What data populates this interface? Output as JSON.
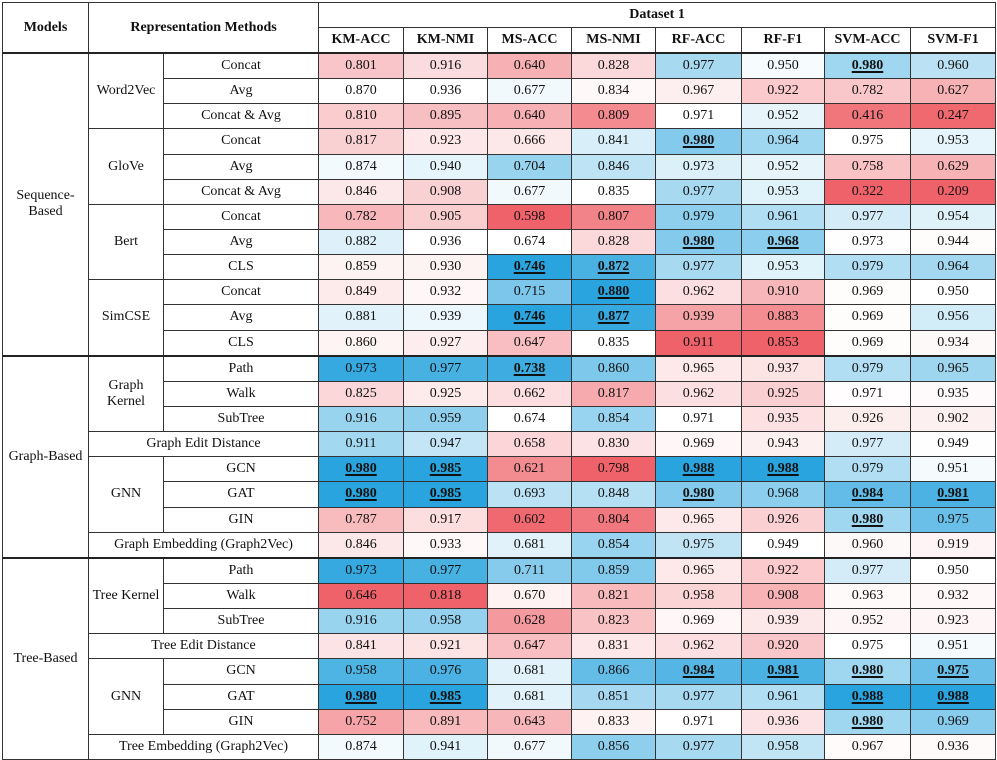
{
  "chart_data": {
    "type": "heatmap",
    "header": {
      "models": "Models",
      "methods": "Representation Methods",
      "dataset": "Dataset 1"
    },
    "columns": [
      "KM-ACC",
      "KM-NMI",
      "MS-ACC",
      "MS-NMI",
      "RF-ACC",
      "RF-F1",
      "SVM-ACC",
      "SVM-F1"
    ],
    "colors": {
      "low": "#ee5a61",
      "mid": "#ffffff",
      "high": "#1e9fdc"
    },
    "groups": [
      {
        "model": "Sequence-Based",
        "subgroups": [
          {
            "name": "Word2Vec",
            "rows": [
              {
                "method": "Concat",
                "values": [
                  0.801,
                  0.916,
                  0.64,
                  0.828,
                  0.977,
                  0.95,
                  0.98,
                  0.96
                ],
                "best": [
                  6
                ]
              },
              {
                "method": "Avg",
                "values": [
                  0.87,
                  0.936,
                  0.677,
                  0.834,
                  0.967,
                  0.922,
                  0.782,
                  0.627
                ],
                "best": []
              },
              {
                "method": "Concat & Avg",
                "values": [
                  0.81,
                  0.895,
                  0.64,
                  0.809,
                  0.971,
                  0.952,
                  0.416,
                  0.247
                ],
                "best": []
              }
            ]
          },
          {
            "name": "GloVe",
            "rows": [
              {
                "method": "Concat",
                "values": [
                  0.817,
                  0.923,
                  0.666,
                  0.841,
                  0.98,
                  0.964,
                  0.975,
                  0.953
                ],
                "best": [
                  4
                ]
              },
              {
                "method": "Avg",
                "values": [
                  0.874,
                  0.94,
                  0.704,
                  0.846,
                  0.973,
                  0.952,
                  0.758,
                  0.629
                ],
                "best": []
              },
              {
                "method": "Concat & Avg",
                "values": [
                  0.846,
                  0.908,
                  0.677,
                  0.835,
                  0.977,
                  0.953,
                  0.322,
                  0.209
                ],
                "best": []
              }
            ]
          },
          {
            "name": "Bert",
            "rows": [
              {
                "method": "Concat",
                "values": [
                  0.782,
                  0.905,
                  0.598,
                  0.807,
                  0.979,
                  0.961,
                  0.977,
                  0.954
                ],
                "best": []
              },
              {
                "method": "Avg",
                "values": [
                  0.882,
                  0.936,
                  0.674,
                  0.828,
                  0.98,
                  0.968,
                  0.973,
                  0.944
                ],
                "best": [
                  4,
                  5
                ]
              },
              {
                "method": "CLS",
                "values": [
                  0.859,
                  0.93,
                  0.746,
                  0.872,
                  0.977,
                  0.953,
                  0.979,
                  0.964
                ],
                "best": [
                  2,
                  3
                ]
              }
            ]
          },
          {
            "name": "SimCSE",
            "rows": [
              {
                "method": "Concat",
                "values": [
                  0.849,
                  0.932,
                  0.715,
                  0.88,
                  0.962,
                  0.91,
                  0.969,
                  0.95
                ],
                "best": [
                  3
                ]
              },
              {
                "method": "Avg",
                "values": [
                  0.881,
                  0.939,
                  0.746,
                  0.877,
                  0.939,
                  0.883,
                  0.969,
                  0.956
                ],
                "best": [
                  2,
                  3
                ]
              },
              {
                "method": "CLS",
                "values": [
                  0.86,
                  0.927,
                  0.647,
                  0.835,
                  0.911,
                  0.853,
                  0.969,
                  0.934
                ],
                "best": []
              }
            ]
          }
        ]
      },
      {
        "model": "Graph-Based",
        "subgroups": [
          {
            "name": "Graph Kernel",
            "rows": [
              {
                "method": "Path",
                "values": [
                  0.973,
                  0.977,
                  0.738,
                  0.86,
                  0.965,
                  0.937,
                  0.979,
                  0.965
                ],
                "best": [
                  2
                ]
              },
              {
                "method": "Walk",
                "values": [
                  0.825,
                  0.925,
                  0.662,
                  0.817,
                  0.962,
                  0.925,
                  0.971,
                  0.935
                ],
                "best": []
              },
              {
                "method": "SubTree",
                "values": [
                  0.916,
                  0.959,
                  0.674,
                  0.854,
                  0.971,
                  0.935,
                  0.926,
                  0.902
                ],
                "best": []
              }
            ]
          },
          {
            "name": "Graph Edit Distance",
            "single": true,
            "rows": [
              {
                "method": "Graph Edit Distance",
                "values": [
                  0.911,
                  0.947,
                  0.658,
                  0.83,
                  0.969,
                  0.943,
                  0.977,
                  0.949
                ],
                "best": []
              }
            ]
          },
          {
            "name": "GNN",
            "rows": [
              {
                "method": "GCN",
                "values": [
                  0.98,
                  0.985,
                  0.621,
                  0.798,
                  0.988,
                  0.988,
                  0.979,
                  0.951
                ],
                "best": [
                  0,
                  1,
                  4,
                  5
                ]
              },
              {
                "method": "GAT",
                "values": [
                  0.98,
                  0.985,
                  0.693,
                  0.848,
                  0.98,
                  0.968,
                  0.984,
                  0.981
                ],
                "best": [
                  0,
                  1,
                  4,
                  6,
                  7
                ]
              },
              {
                "method": "GIN",
                "values": [
                  0.787,
                  0.917,
                  0.602,
                  0.804,
                  0.965,
                  0.926,
                  0.98,
                  0.975
                ],
                "best": [
                  6
                ]
              }
            ]
          },
          {
            "name": "Graph Embedding (Graph2Vec)",
            "single": true,
            "rows": [
              {
                "method": "Graph Embedding (Graph2Vec)",
                "values": [
                  0.846,
                  0.933,
                  0.681,
                  0.854,
                  0.975,
                  0.949,
                  0.96,
                  0.919
                ],
                "best": []
              }
            ]
          }
        ]
      },
      {
        "model": "Tree-Based",
        "subgroups": [
          {
            "name": "Tree Kernel",
            "rows": [
              {
                "method": "Path",
                "values": [
                  0.973,
                  0.977,
                  0.711,
                  0.859,
                  0.965,
                  0.922,
                  0.977,
                  0.95
                ],
                "best": []
              },
              {
                "method": "Walk",
                "values": [
                  0.646,
                  0.818,
                  0.67,
                  0.821,
                  0.958,
                  0.908,
                  0.963,
                  0.932
                ],
                "best": []
              },
              {
                "method": "SubTree",
                "values": [
                  0.916,
                  0.958,
                  0.628,
                  0.823,
                  0.969,
                  0.939,
                  0.952,
                  0.923
                ],
                "best": []
              }
            ]
          },
          {
            "name": "Tree Edit Distance",
            "single": true,
            "rows": [
              {
                "method": "Tree Edit Distance",
                "values": [
                  0.841,
                  0.921,
                  0.647,
                  0.831,
                  0.962,
                  0.92,
                  0.975,
                  0.951
                ],
                "best": []
              }
            ]
          },
          {
            "name": "GNN",
            "rows": [
              {
                "method": "GCN",
                "values": [
                  0.958,
                  0.976,
                  0.681,
                  0.866,
                  0.984,
                  0.981,
                  0.98,
                  0.975
                ],
                "best": [
                  4,
                  5,
                  6,
                  7
                ]
              },
              {
                "method": "GAT",
                "values": [
                  0.98,
                  0.985,
                  0.681,
                  0.851,
                  0.977,
                  0.961,
                  0.988,
                  0.988
                ],
                "best": [
                  0,
                  1,
                  6,
                  7
                ]
              },
              {
                "method": "GIN",
                "values": [
                  0.752,
                  0.891,
                  0.643,
                  0.833,
                  0.971,
                  0.936,
                  0.98,
                  0.969
                ],
                "best": [
                  6
                ]
              }
            ]
          },
          {
            "name": "Tree Embedding (Graph2Vec)",
            "single": true,
            "rows": [
              {
                "method": "Tree Embedding (Graph2Vec)",
                "values": [
                  0.874,
                  0.941,
                  0.677,
                  0.856,
                  0.977,
                  0.958,
                  0.967,
                  0.936
                ],
                "best": []
              }
            ]
          }
        ]
      }
    ]
  }
}
